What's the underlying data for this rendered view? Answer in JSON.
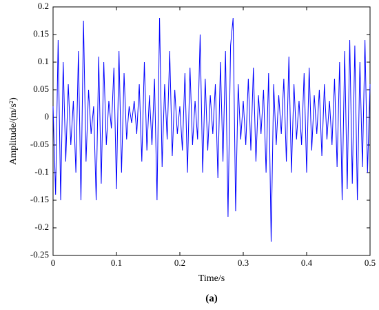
{
  "chart_data": {
    "type": "line",
    "xlabel": "Time/s",
    "ylabel": "Amplitude/(m/s²)",
    "caption": "(a)",
    "color": "#0000ff",
    "xlim": [
      0,
      0.5
    ],
    "xticks": [
      0,
      0.1,
      0.2,
      0.3,
      0.4,
      0.5
    ],
    "ylim": [
      -0.25,
      0.2
    ],
    "yticks": [
      0.2,
      0.15,
      0.1,
      0.05,
      0,
      -0.05,
      -0.1,
      -0.15,
      -0.2,
      -0.25
    ],
    "x": [
      0,
      0.004,
      0.008,
      0.012,
      0.016,
      0.02,
      0.024,
      0.028,
      0.032,
      0.036,
      0.04,
      0.044,
      0.048,
      0.052,
      0.056,
      0.06,
      0.064,
      0.068,
      0.072,
      0.076,
      0.08,
      0.084,
      0.088,
      0.092,
      0.096,
      0.1,
      0.104,
      0.108,
      0.112,
      0.116,
      0.12,
      0.124,
      0.128,
      0.132,
      0.136,
      0.14,
      0.144,
      0.148,
      0.152,
      0.156,
      0.16,
      0.164,
      0.168,
      0.172,
      0.176,
      0.18,
      0.184,
      0.188,
      0.192,
      0.196,
      0.2,
      0.204,
      0.208,
      0.212,
      0.216,
      0.22,
      0.224,
      0.228,
      0.232,
      0.236,
      0.24,
      0.244,
      0.248,
      0.252,
      0.256,
      0.26,
      0.264,
      0.268,
      0.272,
      0.276,
      0.28,
      0.284,
      0.288,
      0.292,
      0.296,
      0.3,
      0.304,
      0.308,
      0.312,
      0.316,
      0.32,
      0.324,
      0.328,
      0.332,
      0.336,
      0.34,
      0.344,
      0.348,
      0.352,
      0.356,
      0.36,
      0.364,
      0.368,
      0.372,
      0.376,
      0.38,
      0.384,
      0.388,
      0.392,
      0.396,
      0.4,
      0.404,
      0.408,
      0.412,
      0.416,
      0.42,
      0.424,
      0.428,
      0.432,
      0.436,
      0.44,
      0.444,
      0.448,
      0.452,
      0.456,
      0.46,
      0.464,
      0.468,
      0.472,
      0.476,
      0.48,
      0.484,
      0.488,
      0.492,
      0.496,
      0.5
    ],
    "values": [
      0.02,
      -0.14,
      0.14,
      -0.15,
      0.1,
      -0.08,
      0.06,
      -0.05,
      0.03,
      -0.1,
      0.12,
      -0.15,
      0.175,
      -0.08,
      0.05,
      -0.03,
      0.02,
      -0.15,
      0.11,
      -0.12,
      0.1,
      -0.05,
      0.03,
      -0.02,
      0.09,
      -0.13,
      0.12,
      -0.1,
      0.08,
      -0.04,
      0.02,
      -0.01,
      0.03,
      -0.03,
      0.06,
      -0.08,
      0.1,
      -0.06,
      0.04,
      -0.05,
      0.07,
      -0.15,
      0.18,
      -0.09,
      0.06,
      -0.04,
      0.12,
      -0.07,
      0.05,
      -0.03,
      0.02,
      -0.06,
      0.08,
      -0.1,
      0.09,
      -0.05,
      0.03,
      -0.04,
      0.15,
      -0.1,
      0.07,
      -0.06,
      0.04,
      -0.03,
      0.06,
      -0.11,
      0.1,
      -0.08,
      0.12,
      -0.18,
      0.13,
      0.18,
      -0.17,
      0.06,
      -0.04,
      0.03,
      -0.05,
      0.07,
      -0.06,
      0.09,
      -0.08,
      0.04,
      -0.03,
      0.05,
      -0.1,
      0.08,
      -0.225,
      0.06,
      -0.05,
      0.04,
      -0.03,
      0.07,
      -0.08,
      0.11,
      -0.1,
      0.06,
      -0.04,
      0.03,
      -0.05,
      0.08,
      -0.1,
      0.09,
      -0.06,
      0.04,
      -0.03,
      0.05,
      -0.07,
      0.06,
      -0.04,
      0.03,
      -0.05,
      0.07,
      -0.09,
      0.1,
      -0.15,
      0.12,
      -0.13,
      0.14,
      -0.12,
      0.13,
      -0.15,
      0.1,
      -0.09,
      0.14,
      -0.1,
      0.06
    ]
  }
}
